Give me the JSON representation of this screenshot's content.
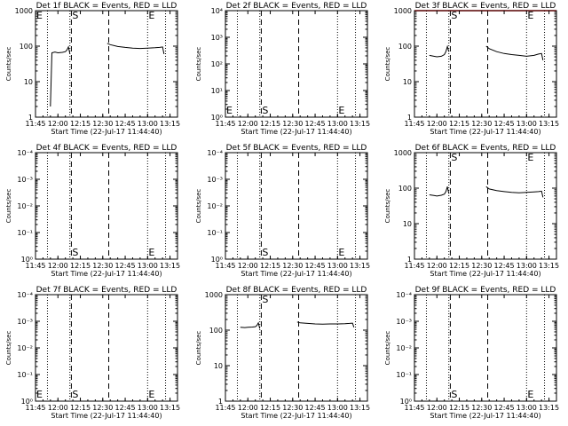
{
  "figure": {
    "x_ticks": [
      "11:45",
      "12:00",
      "12:15",
      "12:30",
      "12:45",
      "13:00",
      "13:15"
    ],
    "xlabel": "Start Time (22-Jul-17 11:44:40)",
    "ylabel": "Counts/sec",
    "y_ticks_counts": [
      "1",
      "10",
      "100",
      "1000"
    ],
    "y_ticks_power": [
      "10⁰",
      "10¹",
      "10²",
      "10³",
      "10⁴"
    ],
    "y_ticks_alt": [
      "10⁰",
      "10⁻¹",
      "10⁻²",
      "10⁻³",
      "10⁻⁴"
    ],
    "marker_S": "S",
    "marker_E": "E",
    "colors": {
      "events": "#000000",
      "lld": "#ff0000",
      "axes": "#000000"
    }
  },
  "chart_data": [
    {
      "type": "line",
      "title": "Det 1f BLACK = Events, RED = LLD",
      "xlabel": "Start Time (22-Jul-17 11:44:40)",
      "ylabel": "Counts/sec",
      "x_range": [
        "11:45",
        "13:20"
      ],
      "ylim": [
        1,
        1000
      ],
      "y_scale": "log",
      "y_tick_style": "counts",
      "dotted_lines": [
        "11:53",
        "12:08",
        "13:00",
        "13:12"
      ],
      "dashed_lines": [
        "12:09",
        "12:34"
      ],
      "markers": {
        "S": "12:09",
        "E_left": "11:45",
        "E_right": "13:00"
      },
      "marker_row": "top",
      "series": [
        {
          "color": "black",
          "points": [
            [
              "11:55",
              2
            ],
            [
              "11:56",
              65
            ],
            [
              "11:58",
              68
            ],
            [
              "12:00",
              65
            ],
            [
              "12:03",
              67
            ],
            [
              "12:05",
              70
            ],
            [
              "12:06",
              78
            ],
            [
              "12:07",
              95
            ],
            [
              "12:08",
              62
            ]
          ]
        },
        {
          "color": "black",
          "points": [
            [
              "12:33",
              120
            ],
            [
              "12:35",
              110
            ],
            [
              "12:40",
              98
            ],
            [
              "12:45",
              92
            ],
            [
              "12:50",
              88
            ],
            [
              "12:55",
              86
            ],
            [
              "13:00",
              88
            ],
            [
              "13:05",
              90
            ],
            [
              "13:08",
              92
            ],
            [
              "13:10",
              95
            ],
            [
              "13:11",
              60
            ]
          ]
        }
      ]
    },
    {
      "type": "line",
      "title": "Det 2f BLACK = Events, RED = LLD",
      "xlabel": "Start Time (22-Jul-17 11:44:40)",
      "ylabel": "Counts/sec",
      "x_range": [
        "11:45",
        "13:20"
      ],
      "ylim": [
        1,
        10000
      ],
      "y_scale": "log",
      "y_tick_style": "power",
      "dotted_lines": [
        "11:53",
        "12:08",
        "13:00",
        "13:12"
      ],
      "dashed_lines": [
        "12:09",
        "12:34"
      ],
      "markers": {
        "S": "12:09",
        "E_left": "11:45",
        "E_right": "13:00"
      },
      "marker_row": "bottom",
      "series": []
    },
    {
      "type": "line",
      "title": "Det 3f BLACK = Events, RED = LLD",
      "xlabel": "Start Time (22-Jul-17 11:44:40)",
      "ylabel": "Counts/sec",
      "x_range": [
        "11:45",
        "13:20"
      ],
      "ylim": [
        1,
        1000
      ],
      "y_scale": "log",
      "y_tick_style": "counts",
      "dotted_lines": [
        "11:53",
        "12:08",
        "13:00",
        "13:12"
      ],
      "dashed_lines": [
        "12:09",
        "12:34"
      ],
      "markers": {
        "S": "12:09",
        "E_right": "13:00"
      },
      "marker_row": "top",
      "series": [
        {
          "color": "black",
          "points": [
            [
              "11:55",
              55
            ],
            [
              "11:58",
              52
            ],
            [
              "12:00",
              50
            ],
            [
              "12:03",
              52
            ],
            [
              "12:05",
              58
            ],
            [
              "12:06",
              70
            ],
            [
              "12:07",
              98
            ],
            [
              "12:08",
              70
            ]
          ]
        },
        {
          "color": "black",
          "points": [
            [
              "12:33",
              100
            ],
            [
              "12:35",
              85
            ],
            [
              "12:40",
              70
            ],
            [
              "12:45",
              62
            ],
            [
              "12:50",
              58
            ],
            [
              "12:55",
              55
            ],
            [
              "13:00",
              52
            ],
            [
              "13:05",
              55
            ],
            [
              "13:08",
              60
            ],
            [
              "13:10",
              62
            ],
            [
              "13:11",
              40
            ]
          ]
        },
        {
          "color": "red",
          "points": [
            [
              "11:45",
              1000
            ],
            [
              "13:20",
              1000
            ]
          ]
        }
      ]
    },
    {
      "type": "line",
      "title": "Det 4f BLACK = Events, RED = LLD",
      "xlabel": "Start Time (22-Jul-17 11:44:40)",
      "ylabel": "Counts/sec",
      "x_range": [
        "11:45",
        "13:20"
      ],
      "ylim": [
        1,
        10000
      ],
      "y_scale": "log",
      "y_tick_style": "alt",
      "dotted_lines": [
        "11:53",
        "12:08",
        "13:00",
        "13:12"
      ],
      "dashed_lines": [
        "12:09",
        "12:34"
      ],
      "markers": {
        "S": "12:09",
        "E_right": "13:00"
      },
      "marker_row": "bottom",
      "series": []
    },
    {
      "type": "line",
      "title": "Det 5f BLACK = Events, RED = LLD",
      "xlabel": "Start Time (22-Jul-17 11:44:40)",
      "ylabel": "Counts/sec",
      "x_range": [
        "11:45",
        "13:20"
      ],
      "ylim": [
        1,
        10000
      ],
      "y_scale": "log",
      "y_tick_style": "alt",
      "dotted_lines": [
        "11:53",
        "12:08",
        "13:00",
        "13:12"
      ],
      "dashed_lines": [
        "12:09",
        "12:34"
      ],
      "markers": {
        "S": "12:09",
        "E_right": "13:00"
      },
      "marker_row": "bottom",
      "series": []
    },
    {
      "type": "line",
      "title": "Det 6f BLACK = Events, RED = LLD",
      "xlabel": "Start Time (22-Jul-17 11:44:40)",
      "ylabel": "Counts/sec",
      "x_range": [
        "11:45",
        "13:20"
      ],
      "ylim": [
        1,
        1000
      ],
      "y_scale": "log",
      "y_tick_style": "counts",
      "dotted_lines": [
        "11:53",
        "12:08",
        "13:00",
        "13:12"
      ],
      "dashed_lines": [
        "12:09",
        "12:34"
      ],
      "markers": {
        "S": "12:09",
        "E_right": "13:00"
      },
      "marker_row": "top",
      "series": [
        {
          "color": "black",
          "points": [
            [
              "11:55",
              65
            ],
            [
              "11:58",
              62
            ],
            [
              "12:00",
              60
            ],
            [
              "12:03",
              63
            ],
            [
              "12:05",
              68
            ],
            [
              "12:06",
              80
            ],
            [
              "12:07",
              110
            ],
            [
              "12:08",
              70
            ]
          ]
        },
        {
          "color": "black",
          "points": [
            [
              "12:33",
              110
            ],
            [
              "12:35",
              95
            ],
            [
              "12:40",
              85
            ],
            [
              "12:45",
              80
            ],
            [
              "12:50",
              76
            ],
            [
              "12:55",
              74
            ],
            [
              "13:00",
              76
            ],
            [
              "13:05",
              78
            ],
            [
              "13:08",
              80
            ],
            [
              "13:10",
              82
            ],
            [
              "13:11",
              55
            ]
          ]
        }
      ]
    },
    {
      "type": "line",
      "title": "Det 7f BLACK = Events, RED = LLD",
      "xlabel": "Start Time (22-Jul-17 11:44:40)",
      "ylabel": "Counts/sec",
      "x_range": [
        "11:45",
        "13:20"
      ],
      "ylim": [
        1,
        10000
      ],
      "y_scale": "log",
      "y_tick_style": "alt",
      "dotted_lines": [
        "11:53",
        "12:08",
        "13:00",
        "13:12"
      ],
      "dashed_lines": [
        "12:09",
        "12:34"
      ],
      "markers": {
        "S": "12:09",
        "E_left": "11:45",
        "E_right": "13:00"
      },
      "marker_row": "bottom",
      "series": []
    },
    {
      "type": "line",
      "title": "Det 8f BLACK = Events, RED = LLD",
      "xlabel": "Start Time (22-Jul-17 11:44:40)",
      "ylabel": "Counts/sec",
      "x_range": [
        "11:45",
        "13:20"
      ],
      "ylim": [
        1,
        1000
      ],
      "y_scale": "log",
      "y_tick_style": "counts",
      "dotted_lines": [
        "11:53",
        "12:08",
        "13:00",
        "13:12"
      ],
      "dashed_lines": [
        "12:09",
        "12:34"
      ],
      "markers": {
        "S": "12:09"
      },
      "marker_row": "top",
      "series": [
        {
          "color": "black",
          "points": [
            [
              "11:55",
              120
            ],
            [
              "11:58",
              118
            ],
            [
              "12:00",
              120
            ],
            [
              "12:03",
              122
            ],
            [
              "12:05",
              125
            ],
            [
              "12:06",
              135
            ],
            [
              "12:07",
              160
            ],
            [
              "12:08",
              110
            ]
          ]
        },
        {
          "color": "black",
          "points": [
            [
              "12:33",
              170
            ],
            [
              "12:35",
              160
            ],
            [
              "12:40",
              155
            ],
            [
              "12:45",
              150
            ],
            [
              "12:50",
              148
            ],
            [
              "12:55",
              150
            ],
            [
              "13:00",
              150
            ],
            [
              "13:05",
              152
            ],
            [
              "13:08",
              155
            ],
            [
              "13:10",
              158
            ],
            [
              "13:11",
              120
            ]
          ]
        }
      ]
    },
    {
      "type": "line",
      "title": "Det 9f BLACK = Events, RED = LLD",
      "xlabel": "Start Time (22-Jul-17 11:44:40)",
      "ylabel": "Counts/sec",
      "x_range": [
        "11:45",
        "13:20"
      ],
      "ylim": [
        1,
        10000
      ],
      "y_scale": "log",
      "y_tick_style": "alt",
      "dotted_lines": [
        "11:53",
        "12:08",
        "13:00",
        "13:12"
      ],
      "dashed_lines": [
        "12:09",
        "12:34"
      ],
      "markers": {
        "S": "12:09",
        "E_right": "13:00"
      },
      "marker_row": "bottom",
      "series": []
    }
  ]
}
